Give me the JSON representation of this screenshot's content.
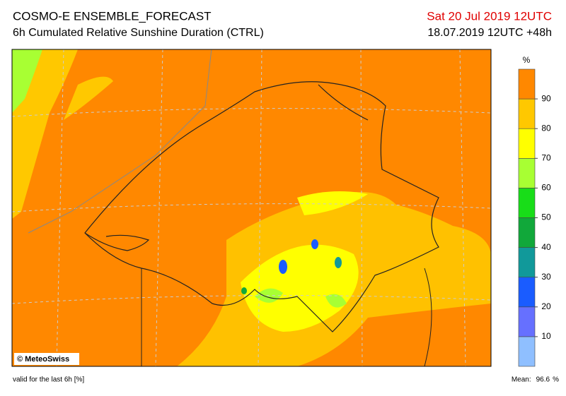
{
  "header": {
    "title": "COSMO-E ENSEMBLE_FORECAST",
    "subtitle": "6h Cumulated Relative Sunshine Duration (CTRL)",
    "valid_time": "Sat 20 Jul 2019 12UTC",
    "run": "18.07.2019 12UTC +48h"
  },
  "legend": {
    "unit": "%",
    "ticks": [
      10,
      20,
      30,
      40,
      50,
      60,
      70,
      80,
      90
    ],
    "colors": [
      "#8fbfff",
      "#6670ff",
      "#1a5cff",
      "#11999a",
      "#11a83a",
      "#18dd18",
      "#a8ff33",
      "#ffff00",
      "#ffc800",
      "#ff8800"
    ]
  },
  "map": {
    "copyright": "© MeteoSwiss"
  },
  "footer": {
    "note": "valid for the last 6h [%]",
    "mean_label": "Mean:",
    "mean_value": 96.6,
    "mean_unit": "%"
  }
}
